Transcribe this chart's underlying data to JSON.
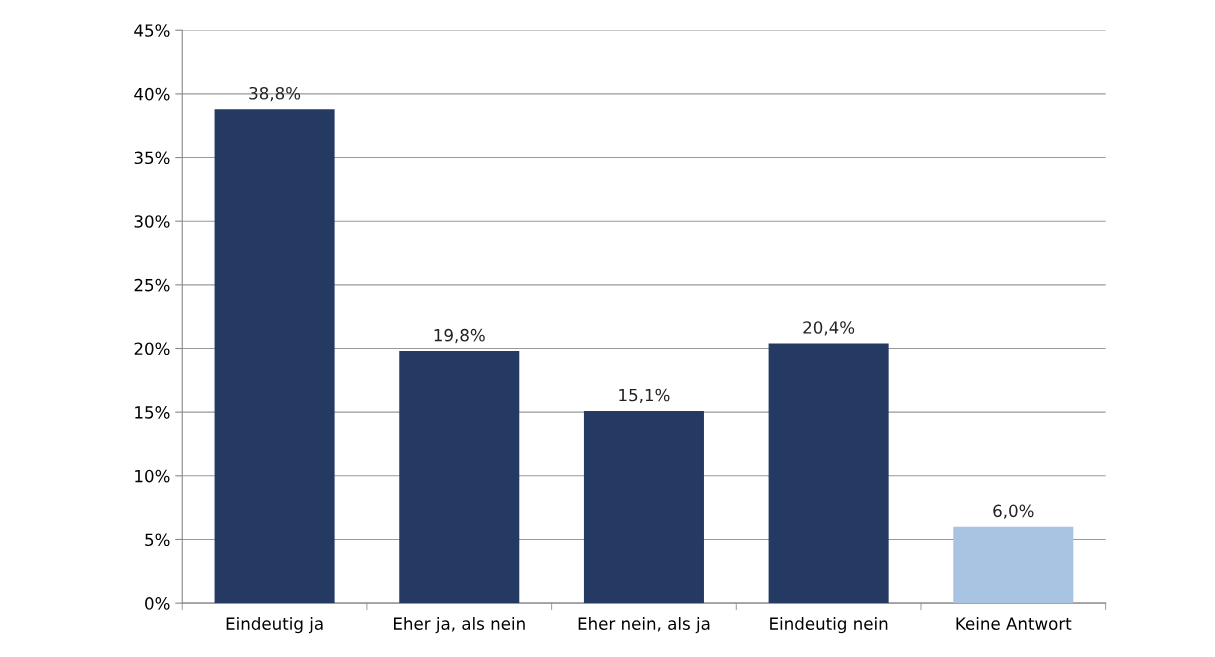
{
  "chart_data": {
    "type": "bar",
    "categories": [
      "Eindeutig ja",
      "Eher ja, als nein",
      "Eher nein, als ja",
      "Eindeutig nein",
      "Keine Antwort"
    ],
    "values": [
      38.8,
      19.8,
      15.1,
      20.4,
      6.0
    ],
    "colors": [
      "#243a63",
      "#243a63",
      "#243a63",
      "#243a63",
      "#a9c4e2"
    ],
    "value_labels": [
      "38,8%",
      "19,8%",
      "15,1%",
      "20,4%",
      "6,0%"
    ],
    "ylim": [
      0,
      45
    ],
    "yticks": [
      {
        "value": 0,
        "label": "0%"
      },
      {
        "value": 5,
        "label": "5%"
      },
      {
        "value": 10,
        "label": "10%"
      },
      {
        "value": 15,
        "label": "15%"
      },
      {
        "value": 20,
        "label": "20%"
      },
      {
        "value": 25,
        "label": "25%"
      },
      {
        "value": 30,
        "label": "30%"
      },
      {
        "value": 35,
        "label": "35%"
      },
      {
        "value": 40,
        "label": "40%"
      },
      {
        "value": 45,
        "label": "45%"
      }
    ],
    "grid": "y",
    "legend": false
  }
}
